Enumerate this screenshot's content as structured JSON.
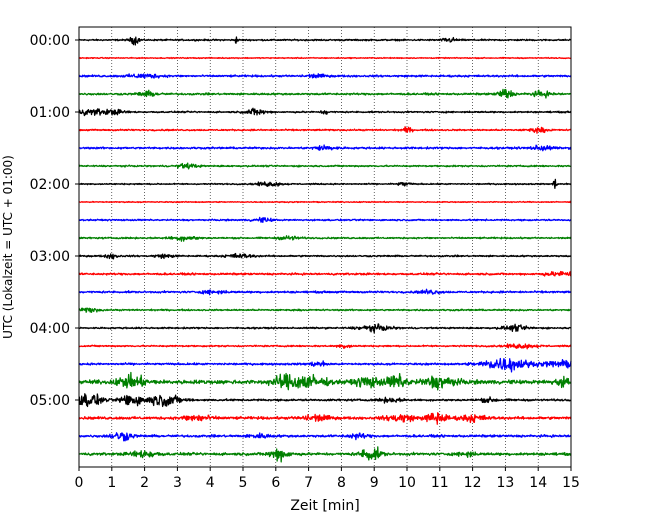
{
  "chart_data": {
    "type": "line",
    "title": "",
    "xlabel": "Zeit  [min]",
    "ylabel": "UTC (Lokalzeit = UTC + 01:00)",
    "xlim": [
      0,
      15
    ],
    "x_ticks": [
      "0",
      "1",
      "2",
      "3",
      "4",
      "5",
      "6",
      "7",
      "8",
      "9",
      "10",
      "11",
      "12",
      "13",
      "14",
      "15"
    ],
    "y_ticks": [
      "00:00",
      "01:00",
      "02:00",
      "03:00",
      "04:00",
      "05:00"
    ],
    "y_tick_rows": [
      0,
      4,
      8,
      12,
      16,
      20
    ],
    "grid": "vertical dotted lines at each minute",
    "line_colors": [
      "#000000",
      "#ff0000",
      "#0000ff",
      "#008000"
    ],
    "trace_interval_minutes": 15,
    "traces": [
      {
        "start": "00:00",
        "amp": 0.12,
        "bursts": [
          [
            1.7,
            0.15,
            0.6
          ],
          [
            4.8,
            0.05,
            0.5
          ],
          [
            11.3,
            0.2,
            0.35
          ]
        ]
      },
      {
        "start": "00:15",
        "amp": 0.08,
        "bursts": []
      },
      {
        "start": "00:30",
        "amp": 0.15,
        "bursts": [
          [
            2.0,
            0.5,
            0.3
          ],
          [
            7.2,
            0.3,
            0.25
          ]
        ]
      },
      {
        "start": "00:45",
        "amp": 0.15,
        "bursts": [
          [
            2.1,
            0.3,
            0.35
          ],
          [
            13.0,
            0.2,
            0.9
          ],
          [
            14.1,
            0.3,
            0.4
          ]
        ]
      },
      {
        "start": "01:00",
        "amp": 0.12,
        "bursts": [
          [
            0.4,
            0.5,
            0.45
          ],
          [
            1.1,
            0.3,
            0.3
          ],
          [
            5.4,
            0.3,
            0.5
          ],
          [
            7.5,
            0.1,
            0.4
          ]
        ]
      },
      {
        "start": "01:15",
        "amp": 0.12,
        "bursts": [
          [
            10.0,
            0.15,
            0.4
          ],
          [
            14.0,
            0.3,
            0.3
          ]
        ]
      },
      {
        "start": "01:30",
        "amp": 0.15,
        "bursts": [
          [
            7.5,
            0.3,
            0.4
          ],
          [
            14.1,
            0.3,
            0.4
          ]
        ]
      },
      {
        "start": "01:45",
        "amp": 0.12,
        "bursts": [
          [
            3.3,
            0.3,
            0.35
          ]
        ]
      },
      {
        "start": "02:00",
        "amp": 0.1,
        "bursts": [
          [
            5.8,
            0.4,
            0.3
          ],
          [
            9.9,
            0.2,
            0.3
          ],
          [
            14.5,
            0.05,
            0.9
          ]
        ]
      },
      {
        "start": "02:15",
        "amp": 0.08,
        "bursts": []
      },
      {
        "start": "02:30",
        "amp": 0.12,
        "bursts": [
          [
            5.6,
            0.3,
            0.3
          ]
        ]
      },
      {
        "start": "02:45",
        "amp": 0.12,
        "bursts": [
          [
            3.2,
            0.4,
            0.35
          ],
          [
            6.4,
            0.3,
            0.3
          ]
        ]
      },
      {
        "start": "03:00",
        "amp": 0.12,
        "bursts": [
          [
            1.0,
            0.2,
            0.35
          ],
          [
            2.6,
            0.3,
            0.25
          ],
          [
            4.9,
            0.4,
            0.3
          ]
        ]
      },
      {
        "start": "03:15",
        "amp": 0.15,
        "bursts": [
          [
            14.7,
            0.5,
            0.3
          ]
        ]
      },
      {
        "start": "03:30",
        "amp": 0.15,
        "bursts": [
          [
            4.1,
            0.3,
            0.3
          ],
          [
            10.7,
            0.3,
            0.3
          ]
        ]
      },
      {
        "start": "03:45",
        "amp": 0.12,
        "bursts": [
          [
            0.3,
            0.3,
            0.3
          ]
        ]
      },
      {
        "start": "04:00",
        "amp": 0.12,
        "bursts": [
          [
            9.0,
            0.5,
            0.45
          ],
          [
            13.3,
            0.4,
            0.4
          ]
        ]
      },
      {
        "start": "04:15",
        "amp": 0.12,
        "bursts": [
          [
            13.5,
            0.5,
            0.3
          ],
          [
            8.1,
            0.2,
            0.3
          ]
        ]
      },
      {
        "start": "04:30",
        "amp": 0.15,
        "bursts": [
          [
            13.0,
            0.7,
            1.0
          ],
          [
            14.7,
            0.5,
            0.5
          ],
          [
            7.3,
            0.3,
            0.3
          ]
        ]
      },
      {
        "start": "04:45",
        "amp": 0.3,
        "bursts": [
          [
            1.6,
            0.4,
            0.9
          ],
          [
            6.3,
            0.4,
            0.9
          ],
          [
            7.0,
            0.5,
            0.9
          ],
          [
            8.8,
            0.4,
            0.7
          ],
          [
            9.7,
            0.3,
            1.0
          ],
          [
            11.0,
            0.5,
            0.9
          ],
          [
            14.8,
            0.3,
            0.6
          ]
        ]
      },
      {
        "start": "05:00",
        "amp": 0.15,
        "bursts": [
          [
            0.3,
            0.4,
            1.0
          ],
          [
            1.6,
            0.3,
            1.0
          ],
          [
            2.6,
            0.5,
            0.9
          ],
          [
            9.5,
            0.3,
            0.35
          ],
          [
            12.5,
            0.3,
            0.3
          ]
        ]
      },
      {
        "start": "05:15",
        "amp": 0.2,
        "bursts": [
          [
            3.6,
            0.4,
            0.5
          ],
          [
            7.2,
            0.4,
            0.5
          ],
          [
            9.8,
            0.4,
            0.6
          ],
          [
            10.9,
            0.3,
            0.9
          ],
          [
            12.0,
            0.4,
            0.5
          ]
        ]
      },
      {
        "start": "05:30",
        "amp": 0.18,
        "bursts": [
          [
            1.3,
            0.3,
            0.7
          ],
          [
            5.5,
            0.3,
            0.3
          ],
          [
            8.5,
            0.3,
            0.35
          ]
        ]
      },
      {
        "start": "05:45",
        "amp": 0.2,
        "bursts": [
          [
            2.0,
            0.4,
            0.5
          ],
          [
            6.1,
            0.3,
            0.9
          ],
          [
            8.9,
            0.3,
            1.0
          ],
          [
            11.8,
            0.2,
            0.5
          ]
        ]
      }
    ]
  }
}
